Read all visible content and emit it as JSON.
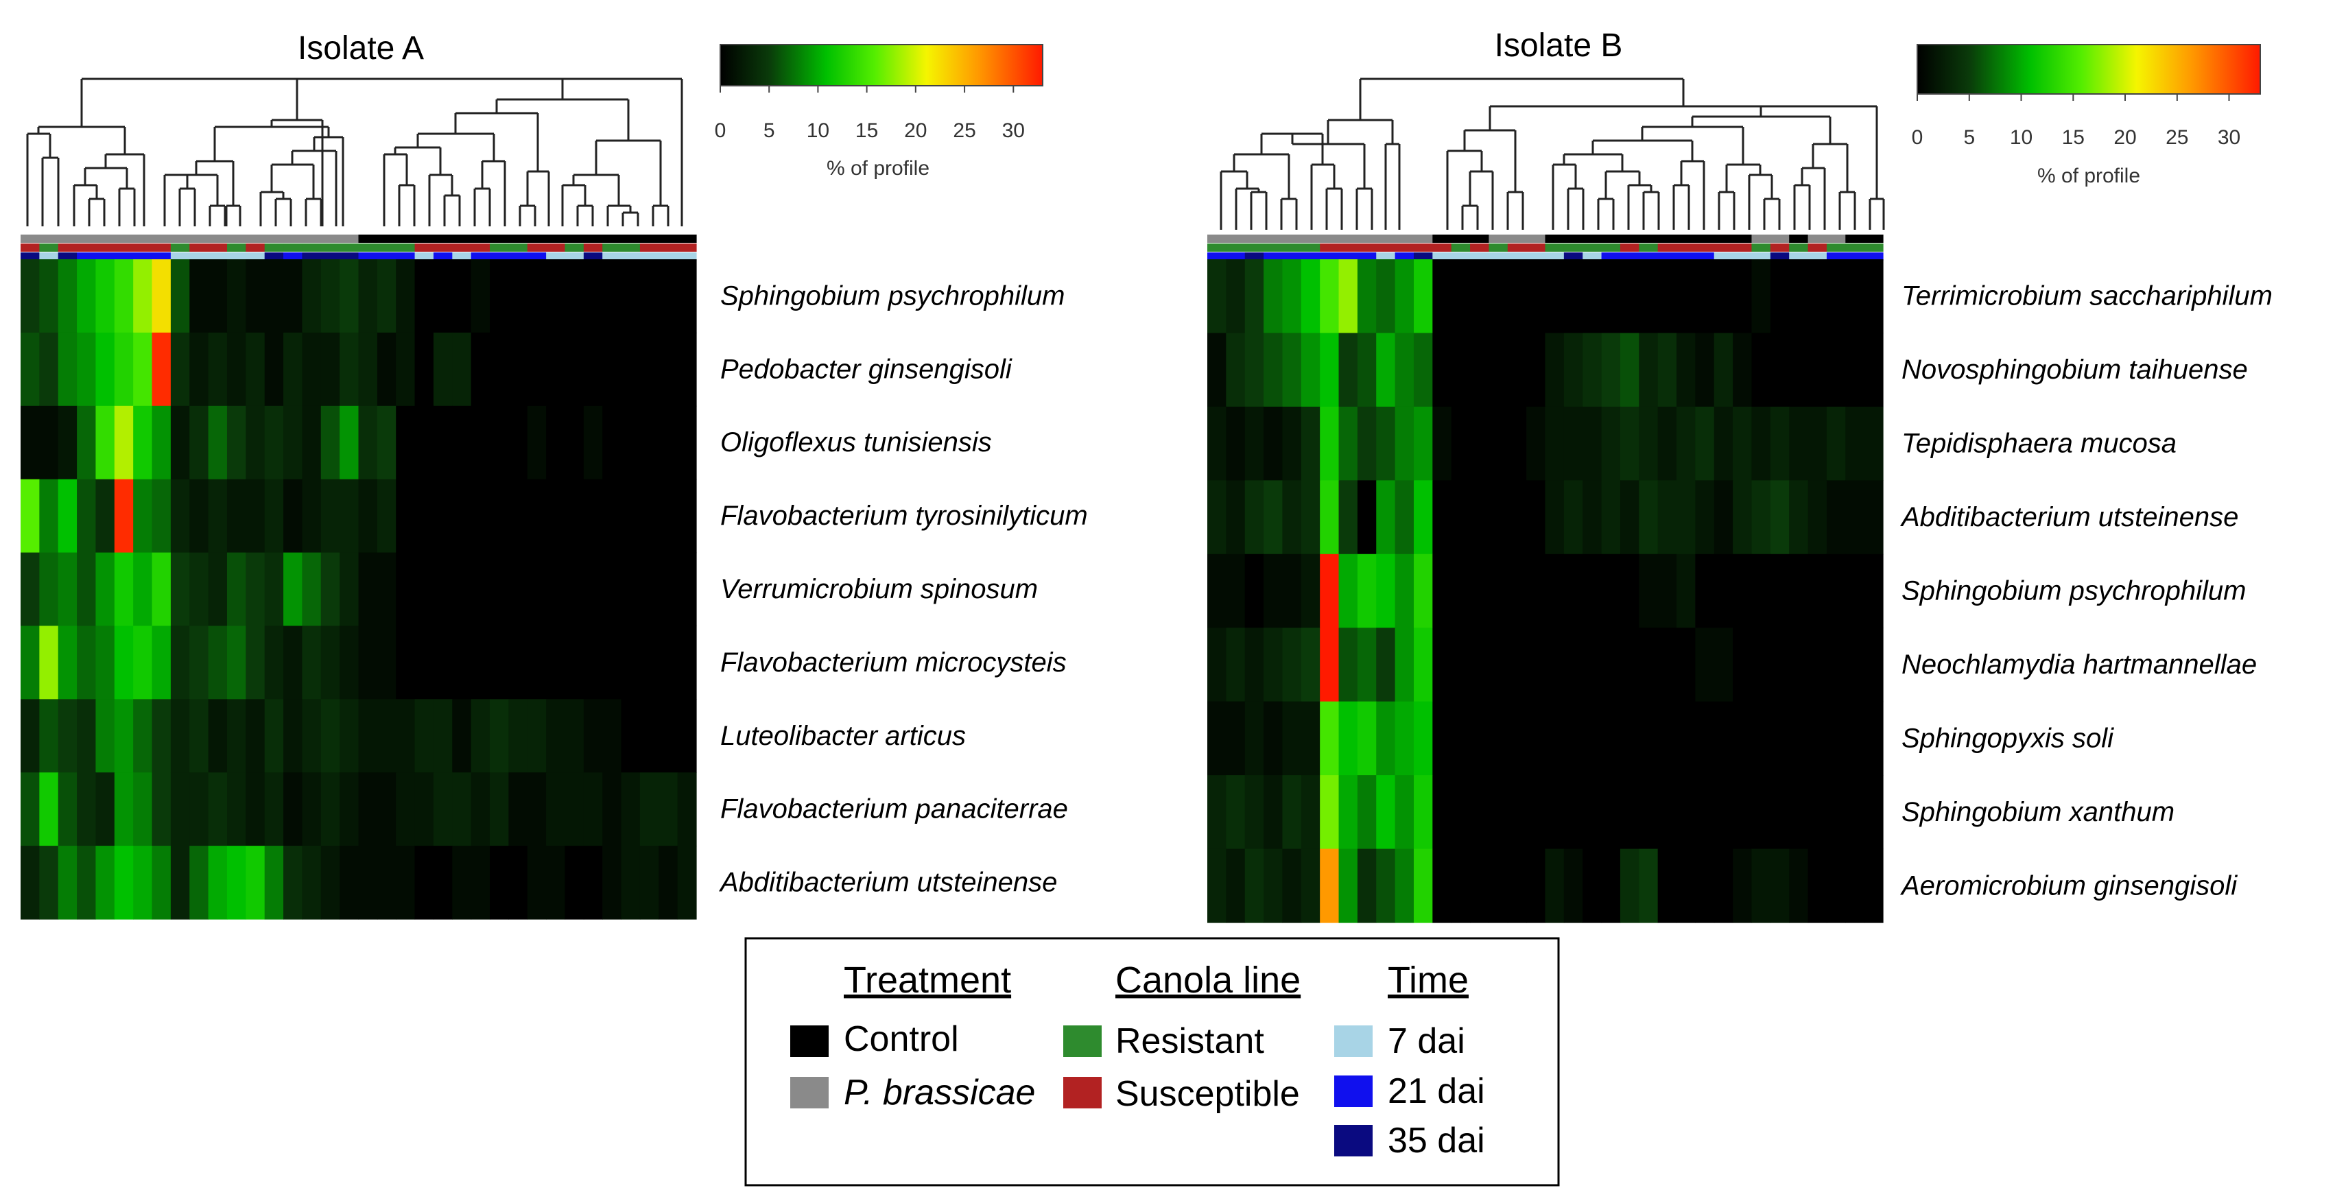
{
  "colors": {
    "control": "#000000",
    "p_brassicae": "#8a8a8a",
    "resistant": "#2e8b2e",
    "susceptible": "#b22222",
    "dai7": "#a8d4e6",
    "dai21": "#1010ee",
    "dai35": "#0a0a80",
    "heat_low": "#000000",
    "heat_mid": "#00e000",
    "heat_yel": "#f0f000",
    "heat_high": "#ff2000"
  },
  "legend": {
    "treatment": {
      "title": "Treatment",
      "items": [
        {
          "label": "Control",
          "color": "control"
        },
        {
          "label": "P. brassicae",
          "color": "p_brassicae",
          "italic": true
        }
      ]
    },
    "canola": {
      "title": "Canola line",
      "items": [
        {
          "label": "Resistant",
          "color": "resistant"
        },
        {
          "label": "Susceptible",
          "color": "susceptible"
        }
      ]
    },
    "time": {
      "title": "Time",
      "items": [
        {
          "label": "7 dai",
          "color": "dai7"
        },
        {
          "label": "21 dai",
          "color": "dai21"
        },
        {
          "label": "35 dai",
          "color": "dai35"
        }
      ]
    }
  },
  "chart_data": [
    {
      "type": "heatmap",
      "title": "Isolate A",
      "colorbar": {
        "label": "% of profile",
        "ticks": [
          0,
          5,
          10,
          15,
          20,
          25,
          30
        ],
        "range": [
          0,
          33
        ]
      },
      "n_samples": 36,
      "species": [
        "Sphingobium psychrophilum",
        "Pedobacter ginsengisoli",
        "Oligoflexus tunisiensis",
        "Flavobacterium tyrosinilyticum",
        "Verrumicrobium spinosum",
        "Flavobacterium microcysteis",
        "Luteolibacter articus",
        "Flavobacterium panaciterrae",
        "Abditibacterium utsteinense"
      ],
      "values": [
        [
          5,
          6,
          8,
          10,
          12,
          14,
          18,
          22,
          6,
          1,
          1,
          2,
          1,
          1,
          1,
          3,
          4,
          5,
          3,
          4,
          2,
          0,
          0,
          0,
          1,
          0,
          0,
          0,
          0,
          0,
          0,
          0,
          0,
          0,
          0,
          0
        ],
        [
          6,
          5,
          8,
          9,
          11,
          13,
          15,
          32,
          4,
          2,
          3,
          2,
          3,
          1,
          3,
          2,
          2,
          4,
          3,
          1,
          2,
          0,
          3,
          3,
          0,
          0,
          0,
          0,
          0,
          0,
          0,
          0,
          0,
          0,
          0,
          0
        ],
        [
          1,
          1,
          2,
          7,
          14,
          19,
          12,
          9,
          2,
          4,
          7,
          5,
          3,
          4,
          3,
          2,
          6,
          9,
          4,
          5,
          0,
          0,
          0,
          0,
          0,
          0,
          0,
          1,
          0,
          0,
          1,
          0,
          0,
          0,
          0,
          0
        ],
        [
          16,
          8,
          11,
          6,
          4,
          32,
          8,
          7,
          3,
          2,
          3,
          2,
          2,
          3,
          1,
          2,
          3,
          3,
          2,
          3,
          0,
          0,
          0,
          0,
          0,
          0,
          0,
          0,
          0,
          0,
          0,
          0,
          0,
          0,
          0,
          0
        ],
        [
          5,
          7,
          8,
          6,
          9,
          12,
          10,
          13,
          5,
          4,
          3,
          6,
          5,
          4,
          9,
          7,
          5,
          3,
          1,
          1,
          0,
          0,
          0,
          0,
          0,
          0,
          0,
          0,
          0,
          0,
          0,
          0,
          0,
          0,
          0,
          0
        ],
        [
          8,
          18,
          9,
          7,
          8,
          11,
          12,
          10,
          4,
          5,
          6,
          7,
          5,
          3,
          2,
          4,
          3,
          2,
          1,
          1,
          0,
          0,
          0,
          0,
          0,
          0,
          0,
          0,
          0,
          0,
          0,
          0,
          0,
          0,
          0,
          0
        ],
        [
          3,
          6,
          5,
          4,
          8,
          9,
          7,
          5,
          3,
          4,
          2,
          3,
          2,
          4,
          2,
          3,
          4,
          3,
          2,
          2,
          2,
          3,
          3,
          1,
          3,
          4,
          3,
          3,
          2,
          2,
          1,
          1,
          0,
          0,
          0,
          0
        ],
        [
          6,
          12,
          6,
          4,
          3,
          9,
          8,
          5,
          3,
          3,
          4,
          3,
          2,
          3,
          1,
          2,
          3,
          2,
          1,
          1,
          2,
          2,
          3,
          3,
          2,
          3,
          1,
          1,
          2,
          2,
          2,
          1,
          2,
          3,
          3,
          2
        ],
        [
          3,
          5,
          8,
          6,
          9,
          11,
          10,
          8,
          3,
          7,
          10,
          11,
          12,
          8,
          4,
          3,
          2,
          1,
          1,
          1,
          1,
          0,
          0,
          1,
          1,
          0,
          0,
          1,
          1,
          0,
          0,
          1,
          2,
          2,
          1,
          2
        ]
      ],
      "annotations": {
        "treatment": [
          "P",
          "P",
          "P",
          "P",
          "P",
          "P",
          "P",
          "P",
          "P",
          "P",
          "P",
          "P",
          "P",
          "P",
          "P",
          "P",
          "P",
          "P",
          "C",
          "C",
          "C",
          "C",
          "C",
          "C",
          "C",
          "C",
          "C",
          "C",
          "C",
          "C",
          "C",
          "C",
          "C",
          "C",
          "C",
          "C"
        ],
        "canola": [
          "S",
          "R",
          "S",
          "S",
          "S",
          "S",
          "S",
          "S",
          "R",
          "S",
          "S",
          "R",
          "S",
          "R",
          "R",
          "R",
          "R",
          "R",
          "R",
          "R",
          "R",
          "S",
          "S",
          "S",
          "S",
          "R",
          "R",
          "S",
          "S",
          "R",
          "S",
          "R",
          "R",
          "S",
          "S",
          "S"
        ],
        "time": [
          "35",
          "7",
          "35",
          "21",
          "21",
          "21",
          "21",
          "21",
          "7",
          "7",
          "7",
          "7",
          "7",
          "35",
          "21",
          "35",
          "35",
          "35",
          "21",
          "21",
          "21",
          "7",
          "21",
          "7",
          "21",
          "21",
          "21",
          "21",
          "7",
          "7",
          "35",
          "7",
          "7",
          "7",
          "7",
          "7"
        ]
      }
    },
    {
      "type": "heatmap",
      "title": "Isolate B",
      "colorbar": {
        "label": "% of profile",
        "ticks": [
          0,
          5,
          10,
          15,
          20,
          25,
          30
        ],
        "range": [
          0,
          33
        ]
      },
      "n_samples": 36,
      "species": [
        "Terrimicrobium sacchariphilum",
        "Novosphingobium taihuense",
        "Tepidisphaera mucosa",
        "Abditibacterium utsteinense",
        "Sphingobium psychrophilum",
        "Neochlamydia hartmannellae",
        "Sphingopyxis soli",
        "Sphingobium xanthum",
        "Aeromicrobium ginsengisoli"
      ],
      "values": [
        [
          4,
          3,
          5,
          8,
          9,
          11,
          15,
          18,
          8,
          7,
          9,
          12,
          0,
          0,
          0,
          0,
          0,
          0,
          0,
          0,
          0,
          0,
          0,
          0,
          0,
          0,
          0,
          0,
          0,
          1,
          0,
          0,
          0,
          0,
          0,
          0
        ],
        [
          1,
          4,
          5,
          6,
          7,
          9,
          11,
          5,
          6,
          10,
          8,
          7,
          0,
          0,
          0,
          0,
          0,
          0,
          2,
          3,
          4,
          5,
          6,
          3,
          4,
          2,
          1,
          3,
          1,
          0,
          0,
          0,
          0,
          0,
          0,
          0
        ],
        [
          2,
          1,
          2,
          1,
          2,
          4,
          12,
          7,
          5,
          6,
          8,
          9,
          1,
          0,
          0,
          0,
          0,
          1,
          2,
          2,
          2,
          3,
          4,
          3,
          2,
          3,
          4,
          2,
          3,
          2,
          3,
          2,
          2,
          3,
          2,
          2
        ],
        [
          3,
          2,
          4,
          5,
          3,
          4,
          13,
          5,
          0,
          9,
          7,
          11,
          0,
          0,
          0,
          0,
          0,
          0,
          2,
          3,
          2,
          3,
          2,
          4,
          3,
          3,
          2,
          1,
          3,
          4,
          5,
          3,
          2,
          1,
          1,
          1
        ],
        [
          1,
          1,
          0,
          1,
          1,
          2,
          33,
          10,
          12,
          11,
          9,
          13,
          0,
          0,
          0,
          0,
          0,
          0,
          0,
          0,
          0,
          0,
          0,
          1,
          1,
          2,
          0,
          0,
          0,
          0,
          0,
          0,
          0,
          0,
          0,
          0
        ],
        [
          2,
          3,
          2,
          3,
          4,
          5,
          33,
          6,
          7,
          5,
          9,
          12,
          0,
          0,
          0,
          0,
          0,
          0,
          0,
          0,
          0,
          0,
          0,
          0,
          0,
          0,
          1,
          1,
          0,
          0,
          0,
          0,
          0,
          0,
          0,
          0
        ],
        [
          1,
          1,
          2,
          1,
          2,
          2,
          15,
          11,
          12,
          9,
          10,
          11,
          0,
          0,
          0,
          0,
          0,
          0,
          0,
          0,
          0,
          0,
          0,
          0,
          0,
          0,
          0,
          0,
          0,
          0,
          0,
          0,
          0,
          0,
          0,
          0
        ],
        [
          3,
          4,
          3,
          2,
          4,
          3,
          17,
          10,
          8,
          11,
          9,
          12,
          0,
          0,
          0,
          0,
          0,
          0,
          0,
          0,
          0,
          0,
          0,
          0,
          0,
          0,
          0,
          0,
          0,
          0,
          0,
          0,
          0,
          0,
          0,
          0
        ],
        [
          3,
          2,
          4,
          3,
          2,
          3,
          26,
          9,
          4,
          6,
          8,
          13,
          0,
          0,
          0,
          0,
          0,
          0,
          2,
          1,
          0,
          0,
          4,
          5,
          0,
          0,
          0,
          0,
          1,
          2,
          2,
          1,
          0,
          0,
          0,
          0
        ]
      ],
      "annotations": {
        "treatment": [
          "P",
          "P",
          "P",
          "P",
          "P",
          "P",
          "P",
          "P",
          "P",
          "P",
          "P",
          "P",
          "C",
          "C",
          "C",
          "P",
          "P",
          "P",
          "C",
          "C",
          "C",
          "C",
          "C",
          "C",
          "C",
          "C",
          "C",
          "C",
          "C",
          "P",
          "P",
          "C",
          "P",
          "P",
          "C",
          "C"
        ],
        "canola": [
          "R",
          "R",
          "R",
          "R",
          "R",
          "R",
          "S",
          "S",
          "S",
          "S",
          "S",
          "S",
          "S",
          "R",
          "S",
          "R",
          "S",
          "S",
          "R",
          "R",
          "R",
          "R",
          "S",
          "R",
          "S",
          "S",
          "S",
          "S",
          "S",
          "R",
          "S",
          "R",
          "S",
          "R",
          "R",
          "R"
        ],
        "time": [
          "21",
          "21",
          "35",
          "21",
          "21",
          "21",
          "21",
          "21",
          "21",
          "7",
          "21",
          "35",
          "7",
          "7",
          "7",
          "7",
          "7",
          "7",
          "7",
          "35",
          "7",
          "21",
          "21",
          "21",
          "21",
          "21",
          "21",
          "7",
          "7",
          "7",
          "35",
          "7",
          "7",
          "21",
          "21",
          "21"
        ]
      }
    }
  ]
}
